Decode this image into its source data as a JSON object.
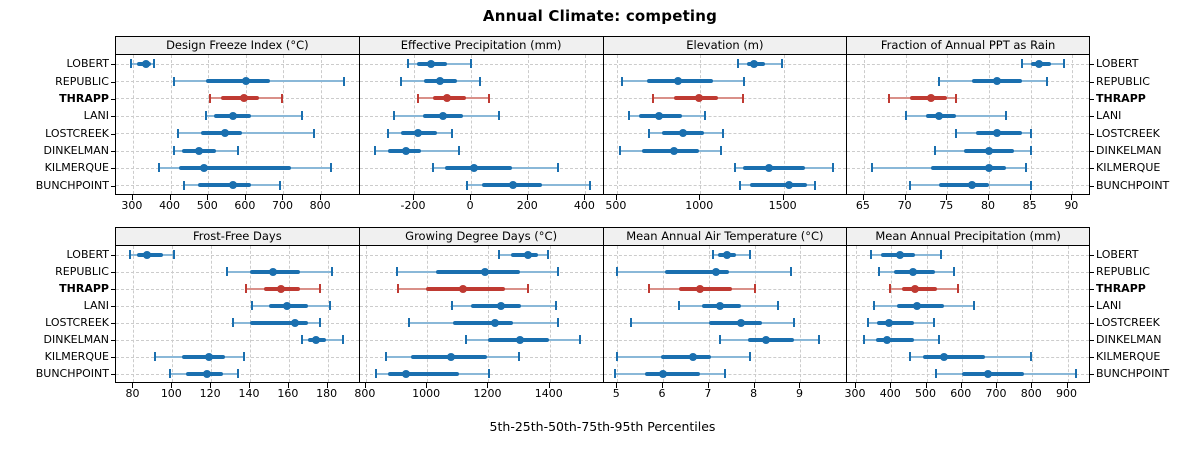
{
  "title": "Annual Climate: competing",
  "xlabel": "5th-25th-50th-75th-95th Percentiles",
  "sites": [
    "LOBERT",
    "REPUBLIC",
    "THRAPP",
    "LANI",
    "LOSTCREEK",
    "DINKELMAN",
    "KILMERQUE",
    "BUNCHPOINT"
  ],
  "highlight_site": "THRAPP",
  "colors": {
    "blue": "#1a6faf",
    "blue_light": "#8ab8d8",
    "red": "#bf3a32",
    "red_light": "#d99089",
    "grid": "#cccccc",
    "strip_bg": "#f0f0f0",
    "border": "#000000"
  },
  "chart_data": [
    {
      "type": "dotplot-percentiles",
      "title": "Design Freeze Index (°C)",
      "xlim": [
        255,
        900
      ],
      "ticks": [
        300,
        400,
        500,
        600,
        700,
        800
      ],
      "percentiles": [
        "5th",
        "25th",
        "50th",
        "75th",
        "95th"
      ],
      "values": [
        [
          295,
          310,
          335,
          348,
          355
        ],
        [
          410,
          495,
          600,
          665,
          860
        ],
        [
          505,
          535,
          595,
          635,
          695
        ],
        [
          495,
          515,
          565,
          615,
          750
        ],
        [
          420,
          480,
          545,
          590,
          780
        ],
        [
          410,
          430,
          475,
          520,
          578
        ],
        [
          368,
          423,
          490,
          720,
          825
        ],
        [
          435,
          472,
          565,
          613,
          692
        ]
      ]
    },
    {
      "type": "dotplot-percentiles",
      "title": "Effective Precipitation (mm)",
      "xlim": [
        -390,
        460
      ],
      "ticks": [
        -200,
        0,
        200,
        400
      ],
      "percentiles": [
        "5th",
        "25th",
        "50th",
        "75th",
        "95th"
      ],
      "values": [
        [
          -220,
          -190,
          -140,
          -85,
          0
        ],
        [
          -245,
          -165,
          -110,
          -48,
          30
        ],
        [
          -185,
          -133,
          -86,
          -19,
          63
        ],
        [
          -270,
          -170,
          -97,
          -30,
          98
        ],
        [
          -290,
          -245,
          -187,
          -118,
          -67
        ],
        [
          -335,
          -290,
          -228,
          -175,
          -42
        ],
        [
          -133,
          -91,
          10,
          144,
          304
        ],
        [
          -13,
          39,
          147,
          249,
          415
        ]
      ]
    },
    {
      "type": "dotplot-percentiles",
      "title": "Elevation (m)",
      "xlim": [
        420,
        1875
      ],
      "ticks": [
        500,
        1000,
        1500
      ],
      "percentiles": [
        "5th",
        "25th",
        "50th",
        "75th",
        "95th"
      ],
      "values": [
        [
          1225,
          1280,
          1325,
          1390,
          1490
        ],
        [
          530,
          680,
          865,
          1075,
          1265
        ],
        [
          715,
          845,
          995,
          1105,
          1255
        ],
        [
          570,
          630,
          750,
          890,
          1030
        ],
        [
          690,
          770,
          895,
          1025,
          1135
        ],
        [
          520,
          650,
          840,
          995,
          1125
        ],
        [
          1210,
          1255,
          1410,
          1630,
          1795
        ],
        [
          1240,
          1300,
          1530,
          1640,
          1690
        ]
      ]
    },
    {
      "type": "dotplot-percentiles",
      "title": "Fraction of Annual PPT as Rain",
      "xlim": [
        63,
        92
      ],
      "ticks": [
        65,
        70,
        75,
        80,
        85,
        90
      ],
      "percentiles": [
        "5th",
        "25th",
        "50th",
        "75th",
        "95th"
      ],
      "values": [
        [
          84,
          85,
          86,
          87.5,
          89
        ],
        [
          74,
          78,
          81,
          84,
          87
        ],
        [
          68,
          70.5,
          73,
          75,
          76
        ],
        [
          70,
          72.5,
          74,
          76,
          82
        ],
        [
          76,
          78.5,
          81,
          84,
          85
        ],
        [
          73.5,
          77,
          80,
          83,
          85
        ],
        [
          66,
          73,
          80,
          82,
          84.5
        ],
        [
          70.5,
          74,
          78,
          80,
          85
        ]
      ]
    },
    {
      "type": "dotplot-percentiles",
      "title": "Frost-Free Days",
      "xlim": [
        71,
        196
      ],
      "ticks": [
        80,
        100,
        120,
        140,
        160,
        180
      ],
      "percentiles": [
        "5th",
        "25th",
        "50th",
        "75th",
        "95th"
      ],
      "values": [
        [
          78,
          82,
          87,
          95,
          101
        ],
        [
          128,
          140,
          152,
          166,
          182
        ],
        [
          138,
          147,
          156,
          166,
          176
        ],
        [
          141,
          150,
          159,
          170,
          181
        ],
        [
          131,
          140,
          163,
          170,
          176
        ],
        [
          167,
          170,
          174,
          179,
          188
        ],
        [
          91,
          105,
          119,
          127,
          137
        ],
        [
          99,
          107,
          118,
          126,
          134
        ]
      ]
    },
    {
      "type": "dotplot-percentiles",
      "title": "Growing Degree Days (°C)",
      "xlim": [
        780,
        1572
      ],
      "ticks": [
        800,
        1000,
        1200,
        1400
      ],
      "percentiles": [
        "5th",
        "25th",
        "50th",
        "75th",
        "95th"
      ],
      "values": [
        [
          1235,
          1272,
          1330,
          1363,
          1395
        ],
        [
          900,
          1030,
          1188,
          1302,
          1426
        ],
        [
          904,
          997,
          1116,
          1253,
          1329
        ],
        [
          1081,
          1143,
          1242,
          1307,
          1420
        ],
        [
          940,
          1085,
          1221,
          1280,
          1428
        ],
        [
          1127,
          1199,
          1304,
          1399,
          1499
        ],
        [
          867,
          948,
          1077,
          1194,
          1300
        ],
        [
          832,
          873,
          932,
          1105,
          1202
        ]
      ]
    },
    {
      "type": "dotplot-percentiles",
      "title": "Mean Annual Air Temperature (°C)",
      "xlim": [
        4.7,
        10.0
      ],
      "ticks": [
        5,
        6,
        7,
        8,
        9
      ],
      "percentiles": [
        "5th",
        "25th",
        "50th",
        "75th",
        "95th"
      ],
      "values": [
        [
          7.1,
          7.2,
          7.4,
          7.6,
          7.9
        ],
        [
          5.0,
          6.05,
          7.15,
          7.45,
          8.8
        ],
        [
          5.7,
          6.35,
          6.8,
          7.5,
          8.0
        ],
        [
          6.35,
          6.85,
          7.25,
          7.7,
          8.5
        ],
        [
          5.3,
          7.0,
          7.7,
          8.15,
          8.85
        ],
        [
          7.25,
          7.85,
          8.25,
          8.85,
          9.4
        ],
        [
          5.0,
          5.95,
          6.65,
          7.05,
          7.9
        ],
        [
          4.95,
          5.6,
          6.0,
          6.8,
          7.35
        ]
      ]
    },
    {
      "type": "dotplot-percentiles",
      "title": "Mean Annual Precipitation (mm)",
      "xlim": [
        275,
        961
      ],
      "ticks": [
        300,
        400,
        500,
        600,
        700,
        800,
        900
      ],
      "percentiles": [
        "5th",
        "25th",
        "50th",
        "75th",
        "95th"
      ],
      "values": [
        [
          342,
          370,
          424,
          468,
          541
        ],
        [
          364,
          408,
          462,
          525,
          579
        ],
        [
          395,
          430,
          468,
          530,
          590
        ],
        [
          351,
          415,
          472,
          550,
          635
        ],
        [
          335,
          360,
          394,
          465,
          520
        ],
        [
          322,
          356,
          389,
          465,
          535
        ],
        [
          452,
          490,
          550,
          665,
          797
        ],
        [
          527,
          602,
          674,
          777,
          924
        ]
      ]
    }
  ],
  "layout_hints": {
    "rows": 2,
    "cols": 4,
    "grid": "dashed",
    "y_labels_left_and_right": true
  }
}
